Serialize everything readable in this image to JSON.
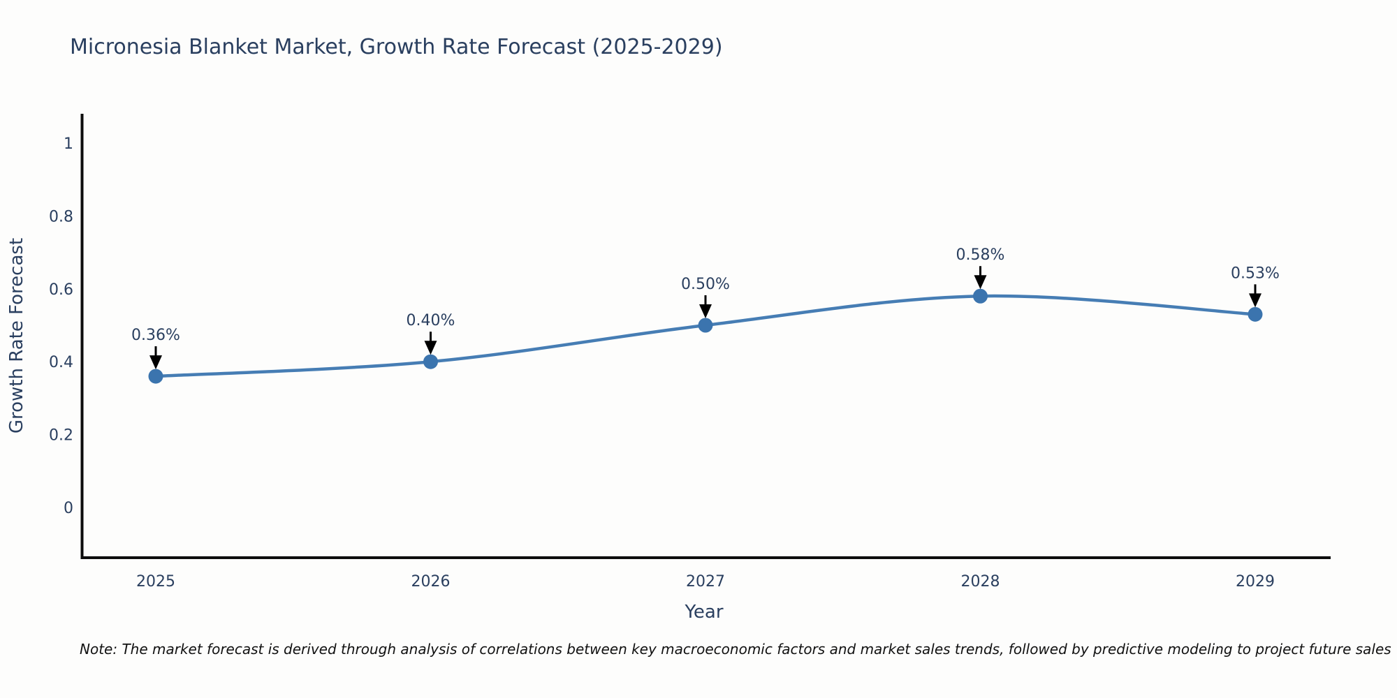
{
  "title": "Micronesia Blanket Market, Growth Rate Forecast (2025-2029)",
  "note": "Note: The market forecast is derived through analysis of correlations between key macroeconomic factors and market sales trends, followed by predictive modeling to project future sales",
  "chart_data": {
    "type": "line",
    "title": "Micronesia Blanket Market, Growth Rate Forecast (2025-2029)",
    "xlabel": "Year",
    "ylabel": "Growth Rate Forecast",
    "categories": [
      "2025",
      "2026",
      "2027",
      "2028",
      "2029"
    ],
    "series": [
      {
        "name": "Growth Rate Forecast",
        "values": [
          0.36,
          0.4,
          0.5,
          0.58,
          0.53
        ],
        "point_labels": [
          "0.36%",
          "0.40%",
          "0.50%",
          "0.58%",
          "0.53%"
        ]
      }
    ],
    "yticks": [
      0,
      0.2,
      0.4,
      0.6,
      0.8,
      1
    ],
    "ylim": [
      -0.14,
      1.08
    ],
    "grid": false,
    "legend_position": "none",
    "line_shape": "spline",
    "annotations_have_arrows": true,
    "colors": {
      "line": "#467db4",
      "marker": "#3b74ae",
      "axis": "#0d0d0d",
      "text": "#2a3f5f",
      "arrow": "#000000"
    }
  }
}
